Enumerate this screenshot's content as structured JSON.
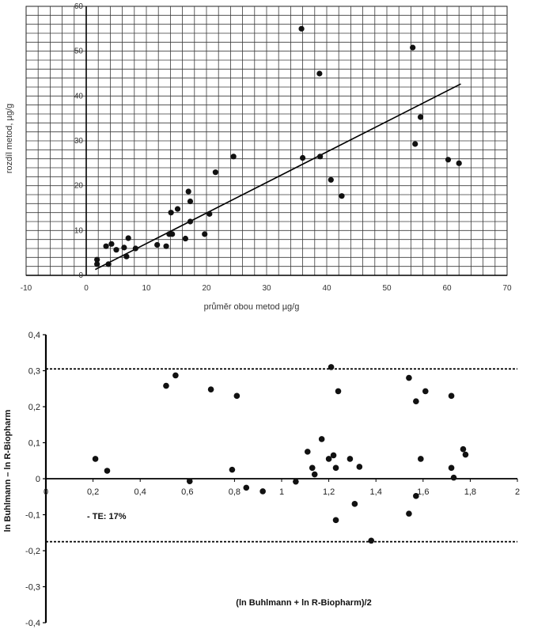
{
  "chart_data": [
    {
      "type": "scatter",
      "title": "",
      "xlabel": "průměr obou metod µg/g",
      "ylabel": "rozdíl metod, µg/g",
      "xlim": [
        -10,
        70
      ],
      "ylim": [
        0,
        60
      ],
      "grid": true,
      "x_ticks": [
        "-10",
        "0",
        "10",
        "20",
        "30",
        "40",
        "50",
        "60",
        "70"
      ],
      "y_ticks": [
        "0",
        "10",
        "20",
        "30",
        "40",
        "50",
        "60"
      ],
      "points": [
        {
          "x": 1.8,
          "y": 2.5
        },
        {
          "x": 1.8,
          "y": 3.5
        },
        {
          "x": 3.3,
          "y": 6.5
        },
        {
          "x": 3.7,
          "y": 2.5
        },
        {
          "x": 4.2,
          "y": 7.0
        },
        {
          "x": 5.0,
          "y": 5.7
        },
        {
          "x": 6.3,
          "y": 6.2
        },
        {
          "x": 6.7,
          "y": 4.2
        },
        {
          "x": 7.0,
          "y": 8.3
        },
        {
          "x": 8.2,
          "y": 6.0
        },
        {
          "x": 11.8,
          "y": 6.8
        },
        {
          "x": 13.3,
          "y": 6.5
        },
        {
          "x": 13.8,
          "y": 9.2
        },
        {
          "x": 14.3,
          "y": 9.2
        },
        {
          "x": 14.1,
          "y": 14.0
        },
        {
          "x": 15.2,
          "y": 14.8
        },
        {
          "x": 16.5,
          "y": 8.2
        },
        {
          "x": 17.0,
          "y": 18.7
        },
        {
          "x": 17.3,
          "y": 16.5
        },
        {
          "x": 17.3,
          "y": 12.0
        },
        {
          "x": 19.7,
          "y": 9.2
        },
        {
          "x": 20.5,
          "y": 13.7
        },
        {
          "x": 21.5,
          "y": 23.0
        },
        {
          "x": 24.5,
          "y": 26.5
        },
        {
          "x": 35.8,
          "y": 55.0
        },
        {
          "x": 36.0,
          "y": 26.2
        },
        {
          "x": 38.8,
          "y": 45.0
        },
        {
          "x": 38.9,
          "y": 26.5
        },
        {
          "x": 40.7,
          "y": 21.3
        },
        {
          "x": 42.5,
          "y": 17.7
        },
        {
          "x": 54.3,
          "y": 50.8
        },
        {
          "x": 54.7,
          "y": 29.3
        },
        {
          "x": 55.6,
          "y": 35.3
        },
        {
          "x": 60.2,
          "y": 25.8
        },
        {
          "x": 62.0,
          "y": 25.0
        }
      ],
      "regression_line": {
        "x": [
          1.5,
          62.3
        ],
        "y": [
          1.3,
          42.7
        ]
      }
    },
    {
      "type": "scatter",
      "title": "",
      "xlabel": "(ln Buhlmann + ln R-Biopharm)/2",
      "ylabel": "ln Buhlmann – ln R-Biopharm",
      "xlim": [
        0,
        2
      ],
      "ylim": [
        -0.4,
        0.4
      ],
      "grid": false,
      "x_ticks": [
        "0",
        "0,2",
        "0,4",
        "0,6",
        "0,8",
        "1",
        "1,2",
        "1,4",
        "1,6",
        "1,8",
        "2"
      ],
      "y_ticks": [
        "-0,4",
        "-0,3",
        "-0,2",
        "-0,1",
        "0",
        "0,1",
        "0,2",
        "0,3",
        "0,4"
      ],
      "reference_lines": [
        0.305,
        -0.175
      ],
      "annotation": "- TE: 17%",
      "points": [
        {
          "x": 0.21,
          "y": 0.055
        },
        {
          "x": 0.26,
          "y": 0.022
        },
        {
          "x": 0.51,
          "y": 0.258
        },
        {
          "x": 0.55,
          "y": 0.287
        },
        {
          "x": 0.61,
          "y": -0.007
        },
        {
          "x": 0.7,
          "y": 0.248
        },
        {
          "x": 0.79,
          "y": 0.025
        },
        {
          "x": 0.81,
          "y": 0.23
        },
        {
          "x": 0.85,
          "y": -0.025
        },
        {
          "x": 0.92,
          "y": -0.035
        },
        {
          "x": 1.06,
          "y": -0.008
        },
        {
          "x": 1.11,
          "y": 0.075
        },
        {
          "x": 1.13,
          "y": 0.03
        },
        {
          "x": 1.14,
          "y": 0.012
        },
        {
          "x": 1.17,
          "y": 0.11
        },
        {
          "x": 1.2,
          "y": 0.055
        },
        {
          "x": 1.21,
          "y": 0.31
        },
        {
          "x": 1.22,
          "y": 0.065
        },
        {
          "x": 1.23,
          "y": 0.03
        },
        {
          "x": 1.23,
          "y": -0.115
        },
        {
          "x": 1.24,
          "y": 0.243
        },
        {
          "x": 1.29,
          "y": 0.055
        },
        {
          "x": 1.31,
          "y": -0.07
        },
        {
          "x": 1.33,
          "y": 0.033
        },
        {
          "x": 1.38,
          "y": -0.172
        },
        {
          "x": 1.54,
          "y": 0.28
        },
        {
          "x": 1.54,
          "y": -0.097
        },
        {
          "x": 1.57,
          "y": 0.215
        },
        {
          "x": 1.57,
          "y": -0.048
        },
        {
          "x": 1.59,
          "y": 0.055
        },
        {
          "x": 1.61,
          "y": 0.243
        },
        {
          "x": 1.72,
          "y": 0.03
        },
        {
          "x": 1.72,
          "y": 0.23
        },
        {
          "x": 1.73,
          "y": 0.003
        },
        {
          "x": 1.77,
          "y": 0.082
        },
        {
          "x": 1.78,
          "y": 0.067
        }
      ]
    }
  ]
}
